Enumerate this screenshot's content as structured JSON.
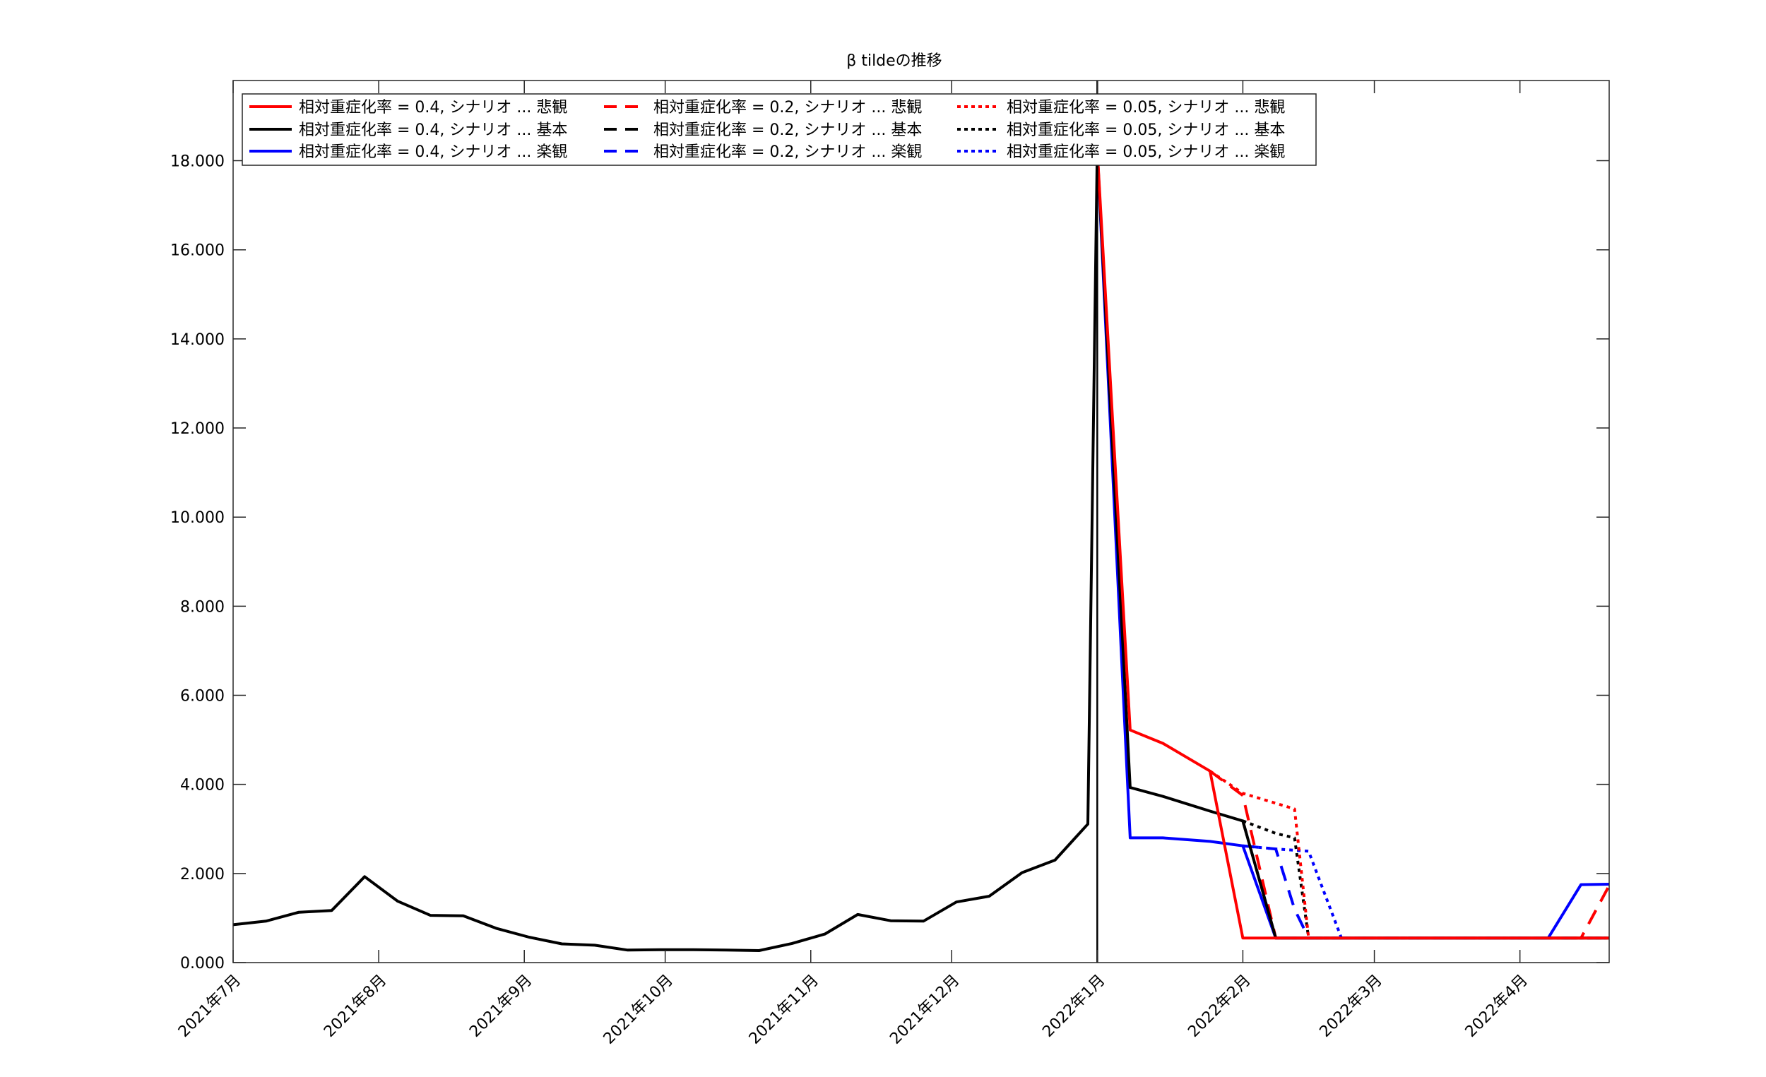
{
  "chart_data": {
    "type": "line",
    "title": "β tildeの推移",
    "xlabel": "",
    "ylabel": "",
    "ylim": [
      0,
      19.8
    ],
    "xlim": [
      "2021-07-01",
      "2022-04-20"
    ],
    "grid": false,
    "legend_position": "top-left",
    "y_ticks": [
      "0.000",
      "2.000",
      "4.000",
      "6.000",
      "8.000",
      "10.000",
      "12.000",
      "14.000",
      "16.000",
      "18.000"
    ],
    "x_ticks": [
      {
        "date": "2021-07-01",
        "label": "2021年7月"
      },
      {
        "date": "2021-08-01",
        "label": "2021年8月"
      },
      {
        "date": "2021-09-01",
        "label": "2021年9月"
      },
      {
        "date": "2021-10-01",
        "label": "2021年10月"
      },
      {
        "date": "2021-11-01",
        "label": "2021年11月"
      },
      {
        "date": "2021-12-01",
        "label": "2021年12月"
      },
      {
        "date": "2022-01-01",
        "label": "2022年1月"
      },
      {
        "date": "2022-02-01",
        "label": "2022年2月"
      },
      {
        "date": "2022-03-01",
        "label": "2022年3月"
      },
      {
        "date": "2022-04-01",
        "label": "2022年4月"
      }
    ],
    "vline": {
      "x": "2022-01-01",
      "color": "#000000"
    },
    "history": {
      "x": [
        "2021-07-01",
        "2021-07-08",
        "2021-07-15",
        "2021-07-22",
        "2021-07-29",
        "2021-08-05",
        "2021-08-12",
        "2021-08-19",
        "2021-08-26",
        "2021-09-02",
        "2021-09-09",
        "2021-09-16",
        "2021-09-23",
        "2021-09-30",
        "2021-10-07",
        "2021-10-14",
        "2021-10-21",
        "2021-10-28",
        "2021-11-04",
        "2021-11-11",
        "2021-11-18",
        "2021-11-25",
        "2021-12-02",
        "2021-12-09",
        "2021-12-16",
        "2021-12-23",
        "2021-12-30",
        "2022-01-01"
      ],
      "values": [
        0.85,
        0.93,
        1.13,
        1.17,
        1.93,
        1.38,
        1.06,
        1.05,
        0.77,
        0.57,
        0.42,
        0.39,
        0.28,
        0.29,
        0.29,
        0.28,
        0.27,
        0.43,
        0.64,
        1.08,
        0.94,
        0.93,
        1.36,
        1.49,
        2.02,
        2.3,
        3.11,
        18.25
      ]
    },
    "series": [
      {
        "name": "相対重症化率 = 0.4, シナリオ ... 悲観",
        "color": "#ff0000",
        "dash": "solid",
        "x": [
          "2022-01-01",
          "2022-01-08",
          "2022-01-15",
          "2022-01-25",
          "2022-02-01",
          "2022-02-08",
          "2022-02-15",
          "2022-03-01",
          "2022-04-07",
          "2022-04-14",
          "2022-04-20"
        ],
        "values": [
          18.25,
          5.22,
          4.92,
          4.3,
          0.55,
          0.55,
          0.55,
          0.55,
          0.55,
          0.55,
          0.55
        ]
      },
      {
        "name": "相対重症化率 = 0.4, シナリオ ... 基本",
        "color": "#000000",
        "dash": "solid",
        "x": [
          "2022-01-01",
          "2022-01-08",
          "2022-01-15",
          "2022-01-25",
          "2022-02-01",
          "2022-02-08",
          "2022-02-15",
          "2022-03-01",
          "2022-04-07",
          "2022-04-14",
          "2022-04-20"
        ],
        "values": [
          18.25,
          3.93,
          3.73,
          3.4,
          3.18,
          0.55,
          0.55,
          0.55,
          0.55,
          0.55,
          0.55
        ]
      },
      {
        "name": "相対重症化率 = 0.4, シナリオ ... 楽観",
        "color": "#0000ff",
        "dash": "solid",
        "x": [
          "2022-01-01",
          "2022-01-08",
          "2022-01-15",
          "2022-01-25",
          "2022-02-01",
          "2022-02-08",
          "2022-02-15",
          "2022-03-01",
          "2022-04-07",
          "2022-04-14",
          "2022-04-20"
        ],
        "values": [
          18.25,
          2.8,
          2.8,
          2.72,
          2.62,
          0.55,
          0.55,
          0.55,
          0.55,
          1.75,
          1.76
        ]
      },
      {
        "name": "相対重症化率 = 0.2, シナリオ ... 悲観",
        "color": "#ff0000",
        "dash": "dashed",
        "x": [
          "2022-01-25",
          "2022-02-01",
          "2022-02-08",
          "2022-02-15",
          "2022-03-01",
          "2022-04-14",
          "2022-04-20"
        ],
        "values": [
          4.3,
          3.75,
          0.55,
          0.55,
          0.55,
          0.55,
          1.73
        ]
      },
      {
        "name": "相対重症化率 = 0.2, シナリオ ... 基本",
        "color": "#000000",
        "dash": "dashed",
        "x": [
          "2022-02-01",
          "2022-02-08",
          "2022-02-15",
          "2022-03-01",
          "2022-04-20"
        ],
        "values": [
          3.18,
          0.55,
          0.55,
          0.55,
          0.55
        ]
      },
      {
        "name": "相対重症化率 = 0.2, シナリオ ... 楽観",
        "color": "#0000ff",
        "dash": "dashed",
        "x": [
          "2022-02-01",
          "2022-02-08",
          "2022-02-12",
          "2022-02-15",
          "2022-03-01",
          "2022-04-20"
        ],
        "values": [
          2.62,
          2.55,
          1.2,
          0.55,
          0.55,
          0.55
        ]
      },
      {
        "name": "相対重症化率 = 0.05, シナリオ ... 悲観",
        "color": "#ff0000",
        "dash": "dotted",
        "x": [
          "2022-01-25",
          "2022-02-01",
          "2022-02-12",
          "2022-02-15",
          "2022-03-01",
          "2022-04-20"
        ],
        "values": [
          4.3,
          3.8,
          3.45,
          0.55,
          0.55,
          0.55
        ]
      },
      {
        "name": "相対重症化率 = 0.05, シナリオ ... 基本",
        "color": "#000000",
        "dash": "dotted",
        "x": [
          "2022-02-01",
          "2022-02-08",
          "2022-02-12",
          "2022-02-15",
          "2022-03-01",
          "2022-04-20"
        ],
        "values": [
          3.18,
          2.9,
          2.8,
          0.55,
          0.55,
          0.55
        ]
      },
      {
        "name": "相対重症化率 = 0.05, シナリオ ... 楽観",
        "color": "#0000ff",
        "dash": "dotted",
        "x": [
          "2022-02-01",
          "2022-02-08",
          "2022-02-15",
          "2022-02-22",
          "2022-03-01",
          "2022-04-20"
        ],
        "values": [
          2.62,
          2.55,
          2.5,
          0.55,
          0.55,
          0.55
        ]
      }
    ]
  }
}
